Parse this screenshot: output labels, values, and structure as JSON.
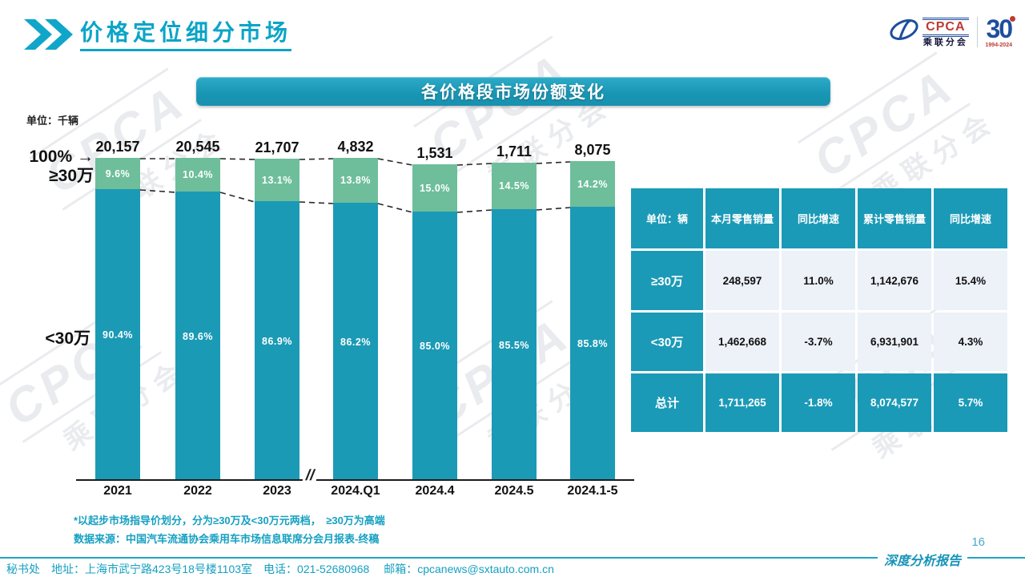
{
  "colors": {
    "teal": "#1b9ab5",
    "green": "#6ebe9b",
    "accent": "#0ba4c7",
    "table_light": "#edf1f8",
    "connector": "#2a2a2a"
  },
  "header": {
    "title": "价格定位细分市场"
  },
  "logo": {
    "cpca": "CPCA",
    "cpca_sub": "乘联分会",
    "anniversary": "30",
    "anniversary_years": "1994-2024"
  },
  "banner": {
    "title": "各价格段市场份额变化"
  },
  "chart_data": {
    "type": "bar",
    "stacked": true,
    "unit_label": "单位：千辆",
    "top_axis_label": "100%",
    "categories": [
      "2021",
      "2022",
      "2023",
      "2024.Q1",
      "2024.4",
      "2024.5",
      "2024.1-5"
    ],
    "bar_totals": [
      "20,157",
      "20,545",
      "21,707",
      "4,832",
      "1,531",
      "1,711",
      "8,075"
    ],
    "series": [
      {
        "name": "≥30万",
        "values": [
          9.6,
          10.4,
          13.1,
          13.8,
          15.0,
          14.5,
          14.2
        ],
        "color": "#6ebe9b"
      },
      {
        "name": "<30万",
        "values": [
          90.4,
          89.6,
          86.9,
          86.2,
          85.0,
          85.5,
          85.8
        ],
        "color": "#1b9ab5"
      }
    ],
    "ylim": [
      0,
      100
    ],
    "grid": false,
    "legend_position": "left-of-plot",
    "axis_break_after": "2023"
  },
  "table": {
    "unit_header": "单位：辆",
    "col_headers": [
      "本月零售销量",
      "同比增速",
      "累计零售销量",
      "同比增速"
    ],
    "rows": [
      {
        "label": "≥30万",
        "cells": [
          "248,597",
          "11.0%",
          "1,142,676",
          "15.4%"
        ],
        "total": false
      },
      {
        "label": "<30万",
        "cells": [
          "1,462,668",
          "-3.7%",
          "6,931,901",
          "4.3%"
        ],
        "total": false
      },
      {
        "label": "总计",
        "cells": [
          "1,711,265",
          "-1.8%",
          "8,074,577",
          "5.7%"
        ],
        "total": true
      }
    ]
  },
  "footnotes": {
    "line1": "*以起步市场指导价划分，分为≥30万及<30万元两档，　≥30万为高端",
    "line2": "数据来源：中国汽车流通协会乘用车市场信息联席分会月报表-终稿"
  },
  "footer": {
    "contact": "秘书处　地址：上海市武宁路423号18号楼1103室　电话：021-52680968　 邮箱：cpcanews@sxtauto.com.cn",
    "report_label": "深度分析报告",
    "page_number": "16"
  },
  "watermark": {
    "text": "CPCA",
    "sub": "乘联分会"
  },
  "icons": {
    "arrow_right": "→",
    "axis_break": "//",
    "chevron": "»"
  }
}
